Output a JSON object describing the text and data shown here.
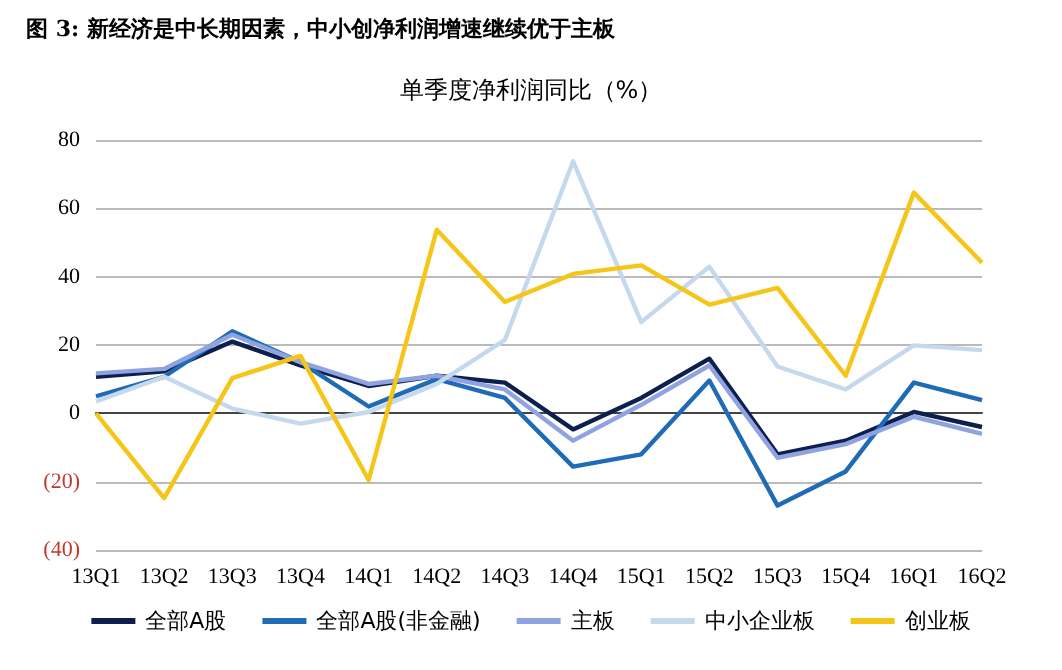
{
  "chart_data": {
    "type": "line",
    "title": "图 3: 新经济是中长期因素，中小创净利润增速继续优于主板",
    "subtitle": "单季度净利润同比（%）",
    "categories": [
      "13Q1",
      "13Q2",
      "13Q3",
      "13Q4",
      "14Q1",
      "14Q2",
      "14Q3",
      "14Q4",
      "15Q1",
      "15Q2",
      "15Q3",
      "15Q4",
      "16Q1",
      "16Q2"
    ],
    "series": [
      {
        "name": "全部A股",
        "color": "#0d1f4c",
        "values": [
          10.7,
          12.3,
          21,
          14,
          8,
          11,
          9,
          -4.7,
          4.5,
          16,
          -12,
          -8,
          0.4,
          -4
        ]
      },
      {
        "name": "全部A股(非金融)",
        "color": "#1f6bb5",
        "values": [
          5,
          10.7,
          24,
          15,
          2,
          10,
          4.5,
          -15.6,
          -12,
          9.6,
          -27,
          -17,
          9,
          3.9
        ]
      },
      {
        "name": "主板",
        "color": "#8fa3e0",
        "values": [
          11.7,
          13,
          23,
          15,
          8.6,
          11,
          7,
          -8,
          2.5,
          14,
          -13,
          -9,
          -1,
          -6
        ]
      },
      {
        "name": "中小企业板",
        "color": "#c5d9ee",
        "values": [
          3.5,
          10.7,
          1.4,
          -3,
          0.4,
          8.6,
          21.5,
          73.8,
          26.7,
          42.9,
          13.7,
          7,
          19.9,
          18.5
        ]
      },
      {
        "name": "创业板",
        "color": "#f5c518",
        "values": [
          0,
          -24.8,
          10.3,
          16.8,
          -19.5,
          53.7,
          32.6,
          40.8,
          43.3,
          31.8,
          36.7,
          11,
          64.6,
          44.1
        ]
      }
    ],
    "ylim": [
      -40,
      80
    ],
    "yticks": [
      {
        "value": -40,
        "label": "(40)"
      },
      {
        "value": -20,
        "label": "(20)"
      },
      0,
      20,
      40,
      60,
      80
    ],
    "grid": "y",
    "legend": "bottom",
    "marker": "none",
    "line_style": "solid"
  }
}
